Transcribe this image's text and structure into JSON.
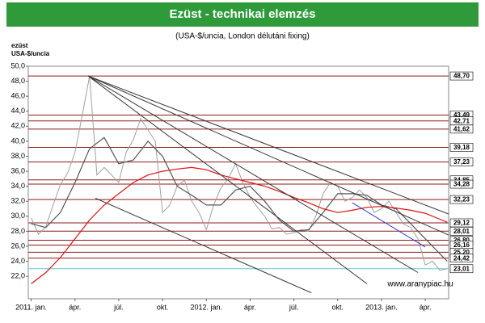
{
  "chart_data": {
    "type": "line",
    "title": "Ezüst - technikai elemzés",
    "subtitle": "(USA-$/uncia, London délutáni fixing)",
    "ylabel_lines": [
      "ezüst",
      "USA-$/uncia"
    ],
    "source": "www.aranypiac.hu",
    "xlim": [
      -0.2,
      28.6
    ],
    "ylim": [
      19,
      50
    ],
    "xticks": [
      {
        "value": 0,
        "label": "2011. jan."
      },
      {
        "value": 3,
        "label": "ápr."
      },
      {
        "value": 6,
        "label": "júl."
      },
      {
        "value": 9,
        "label": "okt."
      },
      {
        "value": 12,
        "label": "2012. jan."
      },
      {
        "value": 15,
        "label": "ápr."
      },
      {
        "value": 18,
        "label": "júl."
      },
      {
        "value": 21,
        "label": "okt."
      },
      {
        "value": 24,
        "label": "2013. jan."
      },
      {
        "value": 27,
        "label": "ápr."
      }
    ],
    "yticks": [
      {
        "value": 50,
        "label": "50,0"
      },
      {
        "value": 48,
        "label": "48,0"
      },
      {
        "value": 46,
        "label": "46,0"
      },
      {
        "value": 44,
        "label": "44,0"
      },
      {
        "value": 42,
        "label": "42,0"
      },
      {
        "value": 40,
        "label": "40,0"
      },
      {
        "value": 38,
        "label": "38,0"
      },
      {
        "value": 36,
        "label": "36,0"
      },
      {
        "value": 34,
        "label": "34,0"
      },
      {
        "value": 32,
        "label": "32,0"
      },
      {
        "value": 30,
        "label": "30,0"
      },
      {
        "value": 28,
        "label": "28,0"
      },
      {
        "value": 26,
        "label": "26,0"
      },
      {
        "value": 24,
        "label": "24,0"
      },
      {
        "value": 22,
        "label": "22,0"
      }
    ],
    "series": [
      {
        "color": "#a0a0a0",
        "x": [
          0,
          0.5,
          1,
          1.5,
          2,
          2.5,
          3,
          3.5,
          4,
          4.5,
          5,
          5.5,
          6,
          6.5,
          7,
          7.5,
          8,
          8.5,
          9,
          9.5,
          10,
          10.5,
          11,
          11.5,
          12,
          12.5,
          13,
          13.5,
          14,
          14.5,
          15,
          15.5,
          16,
          16.5,
          17,
          17.5,
          18,
          18.5,
          19,
          19.5,
          20,
          20.5,
          21,
          21.5,
          22,
          22.5,
          23,
          23.5,
          24,
          24.5,
          25,
          25.5,
          26,
          26.5,
          27,
          27.5,
          28,
          28.5
        ],
        "values": [
          29.8,
          27.6,
          28.6,
          31.5,
          34.2,
          35.8,
          38.5,
          43.5,
          48.7,
          35.5,
          36.5,
          35.5,
          34.5,
          38.5,
          40.2,
          43.0,
          41.5,
          40.0,
          30.5,
          31.5,
          34.0,
          34.8,
          32.0,
          30.5,
          28.2,
          31.5,
          33.8,
          35.0,
          37.0,
          34.5,
          32.5,
          31.2,
          30.0,
          28.3,
          28.5,
          27.6,
          27.8,
          28.2,
          28.0,
          30.0,
          33.0,
          34.5,
          34.0,
          32.0,
          32.5,
          33.5,
          32.5,
          30.5,
          31.0,
          32.0,
          30.5,
          29.0,
          28.5,
          27.0,
          23.5,
          24.0,
          22.8,
          23.0
        ]
      },
      {
        "color": "#555555",
        "x": [
          0,
          1,
          2,
          3,
          4,
          5,
          6,
          7,
          8,
          9,
          10,
          11,
          12,
          13,
          14,
          15,
          16,
          17,
          18,
          19,
          20,
          21,
          22,
          23,
          24,
          25,
          26,
          27,
          28,
          28.5
        ],
        "values": [
          29.0,
          28.5,
          30.5,
          34.5,
          39.0,
          40.5,
          37.0,
          37.5,
          40.0,
          38.0,
          34.0,
          32.8,
          31.5,
          31.5,
          33.5,
          34.0,
          32.0,
          29.5,
          28.0,
          28.2,
          30.5,
          33.0,
          33.0,
          32.8,
          31.5,
          31.0,
          29.0,
          27.0,
          25.0,
          24.0
        ]
      },
      {
        "color": "#dd1111",
        "x": [
          0,
          1,
          2,
          3,
          4,
          5,
          6,
          7,
          8,
          9,
          10,
          11,
          12,
          13,
          14,
          15,
          16,
          17,
          18,
          19,
          20,
          21,
          22,
          23,
          24,
          25,
          26,
          27,
          28,
          28.5
        ],
        "values": [
          21.0,
          22.5,
          24.5,
          27.0,
          29.5,
          31.5,
          33.0,
          34.5,
          35.5,
          36.0,
          36.3,
          36.5,
          36.2,
          35.5,
          35.0,
          34.5,
          34.0,
          33.3,
          32.5,
          31.8,
          31.0,
          30.5,
          30.8,
          31.2,
          31.3,
          31.1,
          30.8,
          30.4,
          29.6,
          29.2
        ]
      }
    ],
    "trend_lines": [
      {
        "color": "#333333",
        "x": [
          3.9,
          28.6
        ],
        "values": [
          48.7,
          30.3
        ]
      },
      {
        "color": "#333333",
        "x": [
          3.9,
          28.6
        ],
        "values": [
          48.7,
          27.5
        ]
      },
      {
        "color": "#333333",
        "x": [
          3.9,
          26.5
        ],
        "values": [
          48.7,
          22.5
        ]
      },
      {
        "color": "#333333",
        "x": [
          3.9,
          23.0
        ],
        "values": [
          48.7,
          21.0
        ]
      },
      {
        "color": "#333333",
        "x": [
          4.4,
          19.2
        ],
        "values": [
          32.4,
          19.8
        ]
      },
      {
        "color": "#3333cc",
        "x": [
          22.0,
          27.0
        ],
        "values": [
          31.8,
          25.9
        ]
      }
    ],
    "levels": [
      {
        "value": 48.7,
        "label": "48,70",
        "color": "#8b1a1a"
      },
      {
        "value": 43.49,
        "label": "43,49",
        "color": "#8b1a1a"
      },
      {
        "value": 42.71,
        "label": "42,71",
        "color": "#8b1a1a"
      },
      {
        "value": 41.62,
        "label": "41,62",
        "color": "#8b1a1a"
      },
      {
        "value": 39.18,
        "label": "39,18",
        "color": "#8b1a1a"
      },
      {
        "value": 37.23,
        "label": "37,23",
        "color": "#8b1a1a"
      },
      {
        "value": 34.85,
        "label": "34,85",
        "color": "#8b1a1a"
      },
      {
        "value": 34.28,
        "label": "34,28",
        "color": "#8b1a1a"
      },
      {
        "value": 32.23,
        "label": "32,23",
        "color": "#8b1a1a"
      },
      {
        "value": 29.12,
        "label": "29,12",
        "color": "#8b1a1a"
      },
      {
        "value": 28.01,
        "label": "28,01",
        "color": "#8b1a1a"
      },
      {
        "value": 26.8,
        "label": "26,80",
        "color": "#8b1a1a"
      },
      {
        "value": 26.16,
        "label": "26,16",
        "color": "#8b1a1a"
      },
      {
        "value": 25.2,
        "label": "25,20",
        "color": "#8b1a1a"
      },
      {
        "value": 24.42,
        "label": "24,42",
        "color": "#8b1a1a"
      },
      {
        "value": 23.01,
        "label": "23,01",
        "color": "#66cccc"
      }
    ]
  }
}
